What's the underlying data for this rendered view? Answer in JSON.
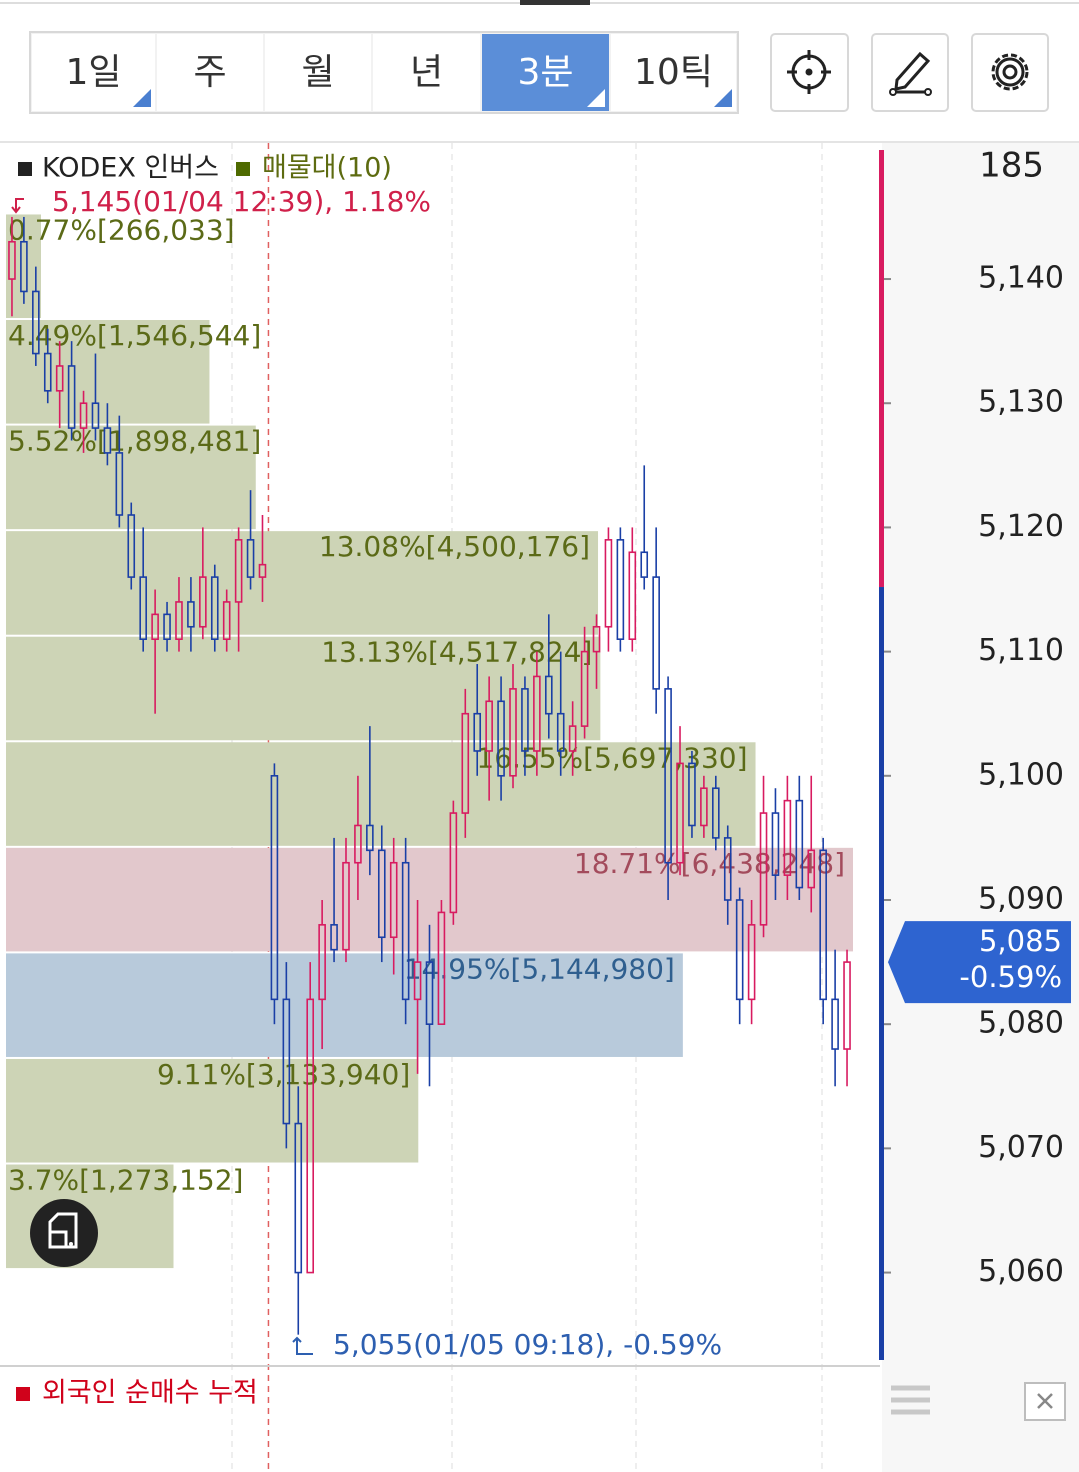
{
  "toolbar": {
    "tabs": [
      {
        "label": "1일",
        "menu": true
      },
      {
        "label": "주",
        "menu": false
      },
      {
        "label": "월",
        "menu": false
      },
      {
        "label": "년",
        "menu": false
      },
      {
        "label": "3분",
        "menu": true
      },
      {
        "label": "10틱",
        "menu": true
      }
    ],
    "active": 4
  },
  "chart_data": {
    "type": "candlestick",
    "legend": [
      {
        "name": "KODEX 인버스",
        "color": "#222222"
      },
      {
        "name": "매물대(10)",
        "color": "#4e6a00"
      }
    ],
    "high_annotation": "5,145(01/04 12:39), 1.18%",
    "low_annotation": "5,055(01/05 09:18), -0.59%",
    "open": [
      5140,
      5143,
      5139,
      5134,
      5131,
      5133,
      5128,
      5130,
      5128,
      5126,
      5121,
      5116,
      5111,
      5113,
      5111,
      5114,
      5112,
      5116,
      5111,
      5114,
      5119,
      5116,
      5100,
      5082,
      5072,
      5060,
      5082,
      5088,
      5086,
      5093,
      5096,
      5094,
      5087,
      5093,
      5082,
      5085,
      5080,
      5089,
      5097,
      5105,
      5102,
      5106,
      5100,
      5107,
      5102,
      5108,
      5105,
      5102,
      5104,
      5110,
      5112,
      5119,
      5111,
      5118,
      5116,
      5107,
      5093,
      5101,
      5096,
      5099,
      5095,
      5090,
      5082,
      5088,
      5097,
      5092,
      5098,
      5091,
      5094,
      5082,
      5078
    ],
    "high": [
      5145,
      5145,
      5141,
      5136,
      5135,
      5135,
      5131,
      5134,
      5130,
      5129,
      5122,
      5120,
      5115,
      5114,
      5116,
      5116,
      5120,
      5117,
      5115,
      5120,
      5123,
      5121,
      5101,
      5085,
      5075,
      5085,
      5090,
      5095,
      5095,
      5100,
      5104,
      5096,
      5095,
      5095,
      5090,
      5088,
      5090,
      5098,
      5107,
      5109,
      5108,
      5108,
      5109,
      5108,
      5110,
      5113,
      5110,
      5106,
      5112,
      5113,
      5120,
      5120,
      5120,
      5125,
      5120,
      5108,
      5104,
      5102,
      5100,
      5100,
      5096,
      5091,
      5090,
      5100,
      5099,
      5100,
      5100,
      5100,
      5095,
      5086,
      5086
    ],
    "low": [
      5137,
      5138,
      5133,
      5130,
      5128,
      5127,
      5126,
      5127,
      5125,
      5120,
      5115,
      5110,
      5105,
      5110,
      5110,
      5110,
      5111,
      5110,
      5110,
      5110,
      5115,
      5114,
      5080,
      5070,
      5055,
      5060,
      5078,
      5085,
      5085,
      5090,
      5092,
      5085,
      5084,
      5080,
      5076,
      5075,
      5080,
      5088,
      5095,
      5100,
      5098,
      5098,
      5099,
      5100,
      5100,
      5103,
      5100,
      5100,
      5103,
      5107,
      5110,
      5110,
      5110,
      5115,
      5105,
      5090,
      5092,
      5095,
      5095,
      5094,
      5088,
      5080,
      5080,
      5087,
      5090,
      5090,
      5090,
      5089,
      5080,
      5075,
      5075
    ],
    "close": [
      5143,
      5139,
      5134,
      5131,
      5133,
      5128,
      5130,
      5128,
      5126,
      5121,
      5116,
      5111,
      5113,
      5111,
      5114,
      5112,
      5116,
      5111,
      5114,
      5119,
      5116,
      5117,
      5082,
      5072,
      5060,
      5082,
      5088,
      5086,
      5093,
      5096,
      5094,
      5087,
      5093,
      5082,
      5085,
      5080,
      5089,
      5097,
      5105,
      5102,
      5106,
      5100,
      5107,
      5102,
      5108,
      5105,
      5102,
      5104,
      5110,
      5112,
      5119,
      5111,
      5118,
      5116,
      5107,
      5093,
      5101,
      5096,
      5099,
      5095,
      5090,
      5082,
      5088,
      5097,
      5092,
      5098,
      5091,
      5094,
      5082,
      5078,
      5085
    ],
    "up_color": "#d81b60",
    "down_color": "#1a3fa6",
    "session_break": 22,
    "ylim": [
      5052.96,
      5150.39
    ],
    "yticks": [
      {
        "value": 5060,
        "label": "5,060"
      },
      {
        "value": 5070,
        "label": "5,070"
      },
      {
        "value": 5080,
        "label": "5,080"
      },
      {
        "value": 5090,
        "label": "5,090"
      },
      {
        "value": 5100,
        "label": "5,100"
      },
      {
        "value": 5110,
        "label": "5,110"
      },
      {
        "value": 5120,
        "label": "5,120"
      },
      {
        "value": 5130,
        "label": "5,130"
      },
      {
        "value": 5140,
        "label": "5,140"
      }
    ],
    "axis_top_label": "185",
    "reference_price": 5115.2,
    "current_price": {
      "value": 5085,
      "label": "5,085"
    },
    "current_change": "-0.59%",
    "volume_profile": {
      "bins": [
        5145.2,
        5136.7,
        5128.2,
        5119.7,
        5111.2,
        5102.7,
        5094.2,
        5085.7,
        5077.2,
        5068.7,
        5060.2
      ],
      "values": [
        266033,
        1546544,
        1898481,
        4500176,
        4517824,
        5697330,
        6438248,
        5144980,
        3133940,
        1273152
      ],
      "value_labels": [
        "0.77%[266,033]",
        "4.49%[1,546,544]",
        "5.52%[1,898,481]",
        "13.08%[4,500,176]",
        "13.13%[4,517,824]",
        "16.55%[5,697,330]",
        "18.71%[6,438,248]",
        "14.95%[5,144,980]",
        "9.11%[3,133,940]",
        "3.7%[1,273,152]"
      ],
      "colors": [
        "#cdd4b6",
        "#cdd4b6",
        "#cdd4b6",
        "#cdd4b6",
        "#cdd4b6",
        "#cdd4b6",
        "#e2c8cc",
        "#b8cadb",
        "#cdd4b6",
        "#cdd4b6"
      ],
      "label_colors": [
        "#5b6a17",
        "#5b6a17",
        "#5b6a17",
        "#5b6a17",
        "#5b6a17",
        "#5b6a17",
        "#a34b5c",
        "#2f5f8f",
        "#5b6a17",
        "#5b6a17"
      ]
    }
  },
  "lower_panel": {
    "title": "외국인 순매수 누적",
    "color": "#d0021b"
  }
}
